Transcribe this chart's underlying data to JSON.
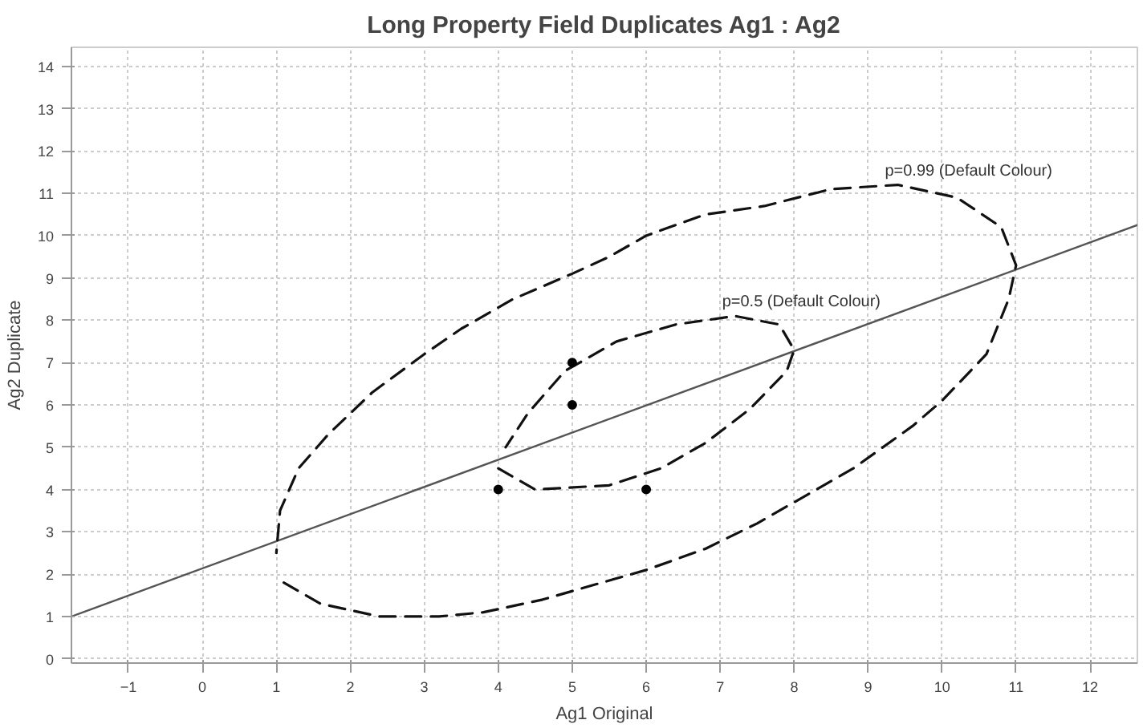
{
  "chart_data": {
    "type": "scatter",
    "title": "Long Property Field Duplicates Ag1 : Ag2",
    "xlabel": "Ag1 Original",
    "ylabel": "Ag2 Duplicate",
    "xlim": [
      -1.77,
      12.64
    ],
    "ylim": [
      -0.1,
      14.45
    ],
    "xticks": [
      -1,
      0,
      1,
      2,
      3,
      4,
      5,
      6,
      7,
      8,
      9,
      10,
      11,
      12
    ],
    "yticks": [
      0,
      1,
      2,
      3,
      4,
      5,
      6,
      7,
      8,
      9,
      10,
      11,
      12,
      13,
      14
    ],
    "grid": true,
    "annotations": [
      "p=0.5 (Default Colour)",
      "p=0.99 (Default Colour)"
    ],
    "series": [
      {
        "type": "line",
        "color": "#555555",
        "line_style": "solid",
        "marker": "none",
        "x": [
          -1.77,
          12.64
        ],
        "values": [
          1.0,
          10.25
        ]
      },
      {
        "type": "line",
        "color": "#111111",
        "line_style": "dashed",
        "marker": "none",
        "x": [
          4.0,
          4.5,
          5.5,
          6.2,
          6.8,
          7.4,
          7.9,
          8.0,
          7.8,
          7.2,
          6.4,
          5.6,
          4.9,
          4.4,
          4.1
        ],
        "values": [
          4.5,
          4.0,
          4.1,
          4.5,
          5.1,
          5.9,
          6.8,
          7.3,
          7.9,
          8.1,
          7.9,
          7.5,
          6.8,
          5.8,
          5.0
        ]
      },
      {
        "type": "line",
        "color": "#111111",
        "line_style": "dashed",
        "marker": "none",
        "x": [
          1.1,
          1.6,
          2.4,
          3.2,
          3.8,
          4.6,
          5.4,
          6.0,
          6.8,
          7.5,
          8.0,
          8.8,
          9.6,
          10.0,
          10.6,
          10.9,
          11.0,
          10.8,
          10.2,
          9.4,
          8.5,
          7.6,
          6.8,
          6.0,
          5.5,
          5.0,
          4.2,
          3.5,
          3.0,
          2.3,
          1.7,
          1.3,
          1.05,
          1.0
        ],
        "values": [
          1.8,
          1.3,
          1.0,
          1.0,
          1.1,
          1.4,
          1.8,
          2.1,
          2.6,
          3.2,
          3.7,
          4.5,
          5.5,
          6.1,
          7.2,
          8.5,
          9.3,
          10.2,
          10.9,
          11.2,
          11.1,
          10.7,
          10.5,
          10.0,
          9.5,
          9.1,
          8.5,
          7.8,
          7.2,
          6.3,
          5.3,
          4.5,
          3.5,
          2.5
        ]
      },
      {
        "color": "#000000",
        "marker": "circle",
        "x": [
          4,
          5,
          5,
          6
        ],
        "values": [
          4,
          7,
          6,
          4
        ]
      }
    ]
  }
}
